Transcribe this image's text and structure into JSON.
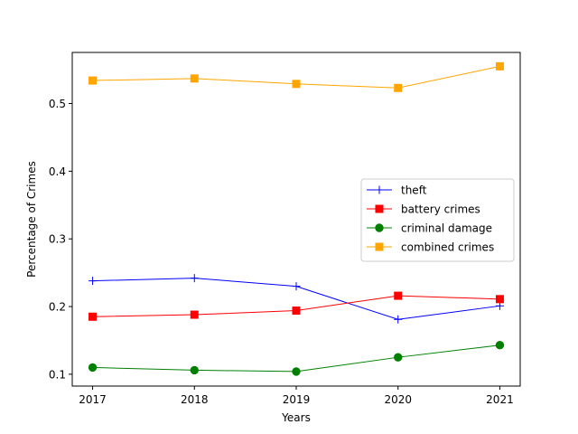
{
  "chart_data": {
    "type": "line",
    "title": "",
    "xlabel": "Years",
    "ylabel": "Percentage of Crimes",
    "x": [
      2017,
      2018,
      2019,
      2020,
      2021
    ],
    "xtick_labels": [
      "2017",
      "2018",
      "2019",
      "2020",
      "2021"
    ],
    "yticks": [
      0.1,
      0.2,
      0.3,
      0.4,
      0.5
    ],
    "ytick_labels": [
      "0.1",
      "0.2",
      "0.3",
      "0.4",
      "0.5"
    ],
    "xlim": [
      2016.8,
      2021.2
    ],
    "ylim": [
      0.0825,
      0.5755
    ],
    "grid": false,
    "legend_position": "center-right",
    "series": [
      {
        "name": "theft",
        "color": "#0000ff",
        "marker": "plus",
        "values": [
          0.238,
          0.242,
          0.23,
          0.181,
          0.201
        ]
      },
      {
        "name": "battery crimes",
        "color": "#ff0000",
        "marker": "square",
        "values": [
          0.185,
          0.188,
          0.194,
          0.216,
          0.211
        ]
      },
      {
        "name": "criminal damage",
        "color": "#008000",
        "marker": "circle",
        "values": [
          0.11,
          0.106,
          0.104,
          0.125,
          0.143
        ]
      },
      {
        "name": "combined crimes",
        "color": "#ffa500",
        "marker": "square",
        "values": [
          0.534,
          0.537,
          0.529,
          0.523,
          0.555
        ]
      }
    ]
  }
}
